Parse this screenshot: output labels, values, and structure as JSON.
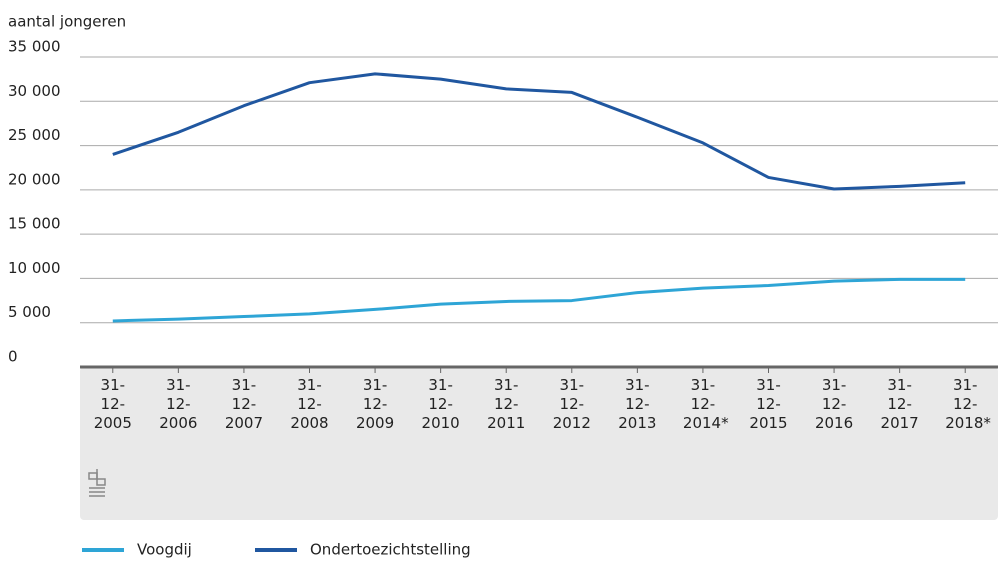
{
  "chart_data": {
    "type": "line",
    "y_label": "aantal jongeren",
    "categories": [
      "31-12-2005",
      "31-12-2006",
      "31-12-2007",
      "31-12-2008",
      "31-12-2009",
      "31-12-2010",
      "31-12-2011",
      "31-12-2012",
      "31-12-2013",
      "31-12-2014*",
      "31-12-2015",
      "31-12-2016",
      "31-12-2017",
      "31-12-2018*"
    ],
    "series": [
      {
        "name": "Voogdij",
        "color": "#2ea5d6",
        "values": [
          5200,
          5400,
          5700,
          6000,
          6500,
          7100,
          7400,
          7500,
          8400,
          8900,
          9200,
          9700,
          9900,
          9900
        ]
      },
      {
        "name": "Ondertoezichtstelling",
        "color": "#2057a0",
        "values": [
          24000,
          26500,
          29500,
          32100,
          33100,
          32500,
          31400,
          31000,
          28200,
          25300,
          21400,
          20100,
          20400,
          20800
        ]
      }
    ],
    "ylim": [
      0,
      35000
    ],
    "yticks": [
      0,
      {
        "value": 5000,
        "label": "5 000"
      },
      {
        "value": 10000,
        "label": "10 000"
      },
      {
        "value": 15000,
        "label": "15 000"
      },
      {
        "value": 20000,
        "label": "20 000"
      },
      {
        "value": 25000,
        "label": "25 000"
      },
      {
        "value": 30000,
        "label": "30 000"
      },
      {
        "value": 35000,
        "label": "35 000"
      }
    ],
    "grid": true
  }
}
